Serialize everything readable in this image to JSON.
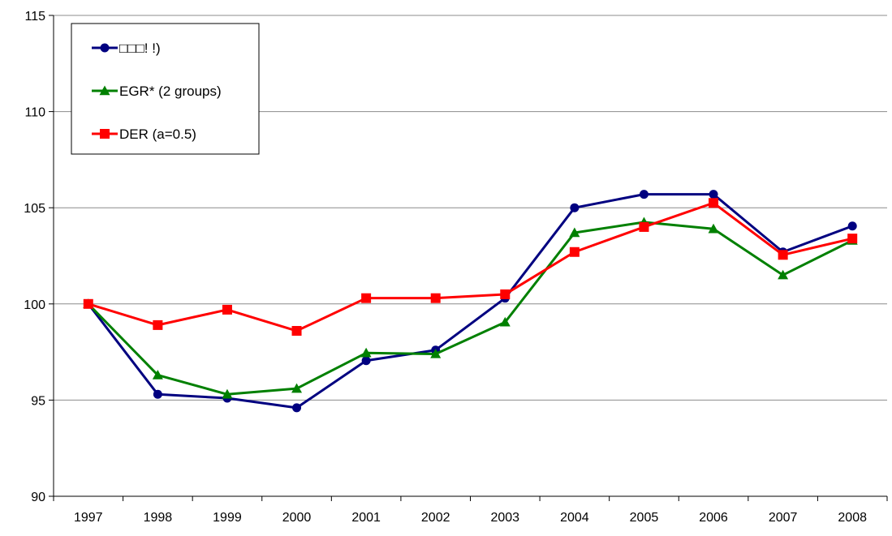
{
  "chart_data": {
    "type": "line",
    "title": "",
    "xlabel": "",
    "ylabel": "",
    "categories": [
      "1997",
      "1998",
      "1999",
      "2000",
      "2001",
      "2002",
      "2003",
      "2004",
      "2005",
      "2006",
      "2007",
      "2008"
    ],
    "y_ticks": [
      "90",
      "95",
      "100",
      "105",
      "110",
      "115"
    ],
    "ylim": [
      90,
      115
    ],
    "grid": true,
    "legend_position": "top-left",
    "series": [
      {
        "name": "□□□! !)",
        "color": "#000080",
        "marker": "circle",
        "values": [
          100,
          95.3,
          95.1,
          94.6,
          97.05,
          97.6,
          100.3,
          105.0,
          105.7,
          105.7,
          102.7,
          104.05
        ]
      },
      {
        "name": "EGR* (2 groups)",
        "color": "#008000",
        "marker": "triangle",
        "values": [
          100,
          96.3,
          95.3,
          95.6,
          97.45,
          97.4,
          99.05,
          103.7,
          104.25,
          103.9,
          101.5,
          103.3
        ]
      },
      {
        "name": "DER (a=0.5)",
        "color": "#ff0000",
        "marker": "square",
        "values": [
          100,
          98.9,
          99.7,
          98.6,
          100.3,
          100.3,
          100.5,
          102.7,
          104.0,
          105.25,
          102.55,
          103.4
        ]
      }
    ]
  }
}
